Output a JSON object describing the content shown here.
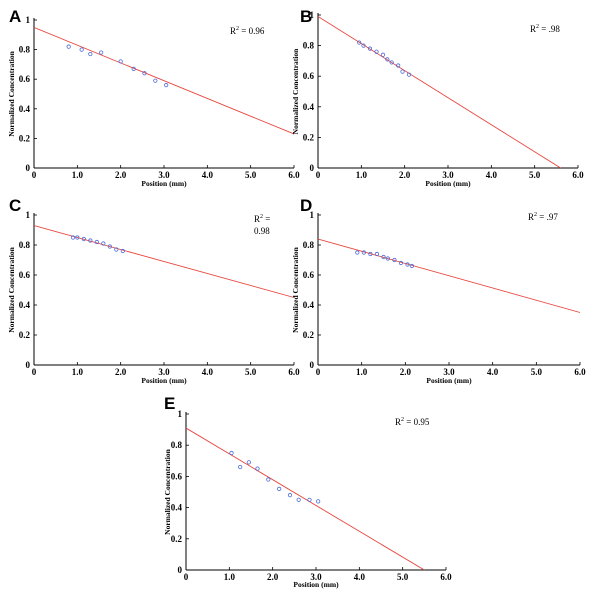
{
  "chart_data": [
    {
      "panel": "A",
      "type": "scatter",
      "xlabel": "Position (mm)",
      "ylabel": "Normalized Concentration",
      "xlim": [
        0,
        6
      ],
      "ylim": [
        0,
        1
      ],
      "xticks": [
        "0",
        "1.0",
        "2.0",
        "3.0",
        "4.0",
        "5.0",
        "6.0"
      ],
      "yticks": [
        "0",
        "0.2",
        "0.4",
        "0.6",
        "0.8",
        "1"
      ],
      "annotation": [
        "R",
        "2",
        " = 0.96"
      ],
      "points": [
        [
          0.8,
          0.82
        ],
        [
          1.1,
          0.8
        ],
        [
          1.3,
          0.77
        ],
        [
          1.55,
          0.78
        ],
        [
          2.0,
          0.72
        ],
        [
          2.3,
          0.67
        ],
        [
          2.55,
          0.64
        ],
        [
          2.8,
          0.59
        ],
        [
          3.05,
          0.56
        ]
      ],
      "fit_line": [
        [
          0,
          0.95
        ],
        [
          6.0,
          0.23
        ]
      ],
      "point_color": "#4b6bd8",
      "line_color": "#e8453c"
    },
    {
      "panel": "B",
      "type": "scatter",
      "xlabel": "Position (mm)",
      "ylabel": "Normalized Concentration",
      "xlim": [
        0,
        6
      ],
      "ylim": [
        0,
        1
      ],
      "xticks": [
        "0",
        "1.0",
        "2.0",
        "3.0",
        "4.0",
        "5.0",
        "6.0"
      ],
      "yticks": [
        "0",
        "0.2",
        "0.4",
        "0.6",
        "0.8",
        "1"
      ],
      "annotation": [
        "R",
        "2",
        " = .98"
      ],
      "points": [
        [
          0.95,
          0.82
        ],
        [
          1.05,
          0.8
        ],
        [
          1.2,
          0.78
        ],
        [
          1.35,
          0.76
        ],
        [
          1.5,
          0.74
        ],
        [
          1.6,
          0.71
        ],
        [
          1.7,
          0.69
        ],
        [
          1.85,
          0.67
        ],
        [
          1.95,
          0.63
        ],
        [
          2.1,
          0.61
        ]
      ],
      "fit_line": [
        [
          0,
          0.99
        ],
        [
          5.6,
          0.0
        ]
      ],
      "point_color": "#4b6bd8",
      "line_color": "#e8453c"
    },
    {
      "panel": "C",
      "type": "scatter",
      "xlabel": "Position (mm)",
      "ylabel": "Normalized Concentration",
      "xlim": [
        0,
        6
      ],
      "ylim": [
        0,
        1
      ],
      "xticks": [
        "0",
        "1.0",
        "2.0",
        "3.0",
        "4.0",
        "5.0",
        "6.0"
      ],
      "yticks": [
        "0",
        "0.2",
        "0.4",
        "0.6",
        "0.8",
        "1"
      ],
      "annotation": [
        "R",
        "2",
        " =",
        "0.98"
      ],
      "points": [
        [
          0.9,
          0.85
        ],
        [
          1.0,
          0.85
        ],
        [
          1.15,
          0.84
        ],
        [
          1.3,
          0.83
        ],
        [
          1.45,
          0.82
        ],
        [
          1.6,
          0.81
        ],
        [
          1.75,
          0.79
        ],
        [
          1.9,
          0.77
        ],
        [
          2.05,
          0.76
        ]
      ],
      "fit_line": [
        [
          0,
          0.93
        ],
        [
          6.0,
          0.45
        ]
      ],
      "point_color": "#4b6bd8",
      "line_color": "#e8453c"
    },
    {
      "panel": "D",
      "type": "scatter",
      "xlabel": "Position (mm)",
      "ylabel": "Normalized Concentration",
      "xlim": [
        0,
        6
      ],
      "ylim": [
        0,
        1
      ],
      "xticks": [
        "0",
        "1.0",
        "2.0",
        "3.0",
        "4.0",
        "5.0",
        "6.0"
      ],
      "yticks": [
        "0",
        "0.2",
        "0.4",
        "0.6",
        "0.8",
        "1"
      ],
      "annotation": [
        "R",
        "2",
        " = .97"
      ],
      "points": [
        [
          0.9,
          0.75
        ],
        [
          1.05,
          0.75
        ],
        [
          1.2,
          0.74
        ],
        [
          1.35,
          0.74
        ],
        [
          1.5,
          0.72
        ],
        [
          1.6,
          0.71
        ],
        [
          1.75,
          0.7
        ],
        [
          1.9,
          0.68
        ],
        [
          2.05,
          0.67
        ],
        [
          2.15,
          0.66
        ]
      ],
      "fit_line": [
        [
          0,
          0.84
        ],
        [
          6.0,
          0.35
        ]
      ],
      "point_color": "#4b6bd8",
      "line_color": "#e8453c"
    },
    {
      "panel": "E",
      "type": "scatter",
      "xlabel": "Position (mm)",
      "ylabel": "Normalized Concentration",
      "xlim": [
        0,
        6
      ],
      "ylim": [
        0,
        1
      ],
      "xticks": [
        "0",
        "1.0",
        "2.0",
        "3.0",
        "4.0",
        "5.0",
        "6.0"
      ],
      "yticks": [
        "0",
        "0.2",
        "0.4",
        "0.6",
        "0.8",
        "1"
      ],
      "annotation": [
        "R",
        "2",
        " = 0.95"
      ],
      "points": [
        [
          1.05,
          0.75
        ],
        [
          1.25,
          0.66
        ],
        [
          1.45,
          0.69
        ],
        [
          1.65,
          0.65
        ],
        [
          1.9,
          0.58
        ],
        [
          2.15,
          0.52
        ],
        [
          2.4,
          0.48
        ],
        [
          2.6,
          0.45
        ],
        [
          2.85,
          0.45
        ],
        [
          3.05,
          0.44
        ]
      ],
      "fit_line": [
        [
          0,
          0.91
        ],
        [
          5.5,
          0.0
        ]
      ],
      "point_color": "#4b6bd8",
      "line_color": "#e8453c"
    }
  ]
}
